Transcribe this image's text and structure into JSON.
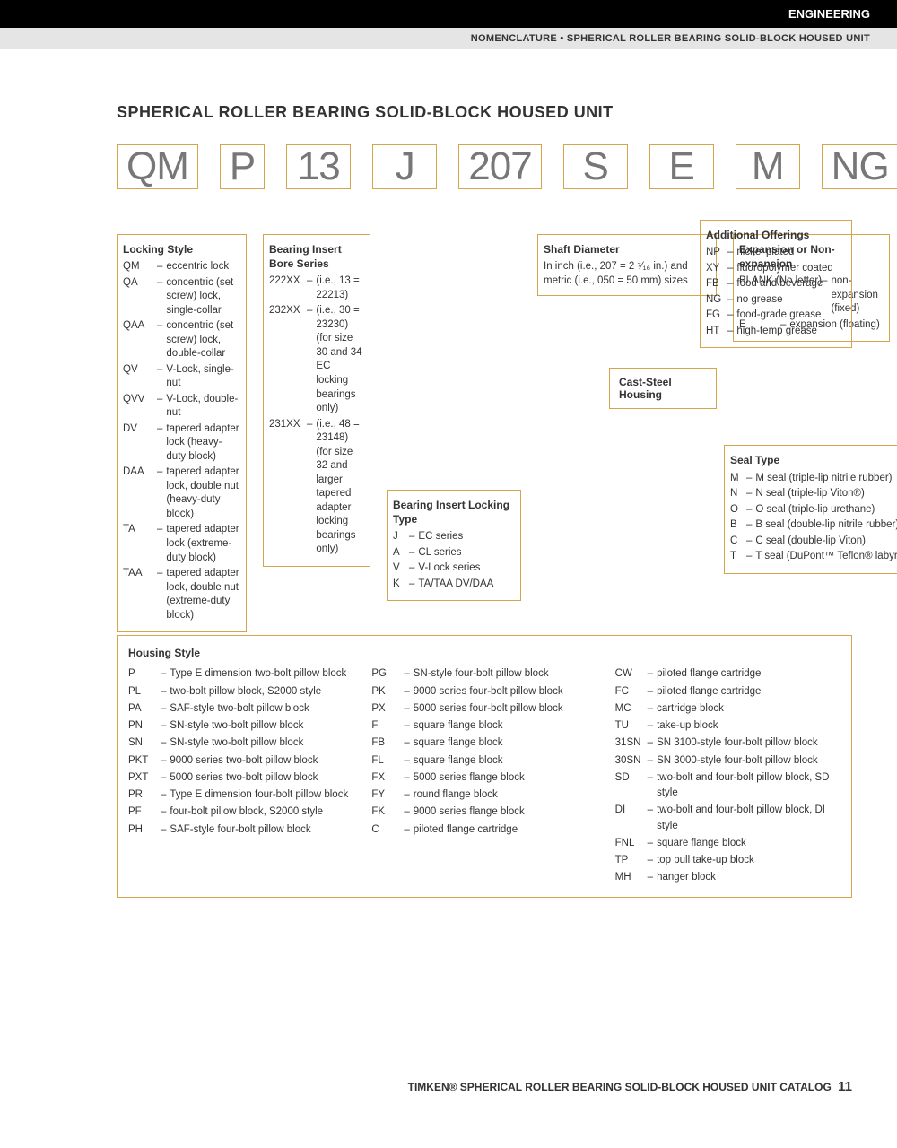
{
  "header": {
    "category": "ENGINEERING",
    "sub": "NOMENCLATURE • SPHERICAL ROLLER BEARING SOLID-BLOCK HOUSED UNIT"
  },
  "title": "SPHERICAL ROLLER BEARING SOLID-BLOCK HOUSED UNIT",
  "code": [
    "QM",
    "P",
    "13",
    "J",
    "207",
    "S",
    "E",
    "M",
    "NG"
  ],
  "colors": {
    "border": "#d4a54a",
    "code_text": "#777777"
  },
  "locking": {
    "title": "Locking Style",
    "items": [
      [
        "QM",
        "eccentric lock"
      ],
      [
        "QA",
        "concentric (set screw) lock, single-collar"
      ],
      [
        "QAA",
        "concentric (set screw) lock, double-collar"
      ],
      [
        "QV",
        "V-Lock, single-nut"
      ],
      [
        "QVV",
        "V-Lock, double-nut"
      ],
      [
        "DV",
        "tapered adapter lock (heavy-duty block)"
      ],
      [
        "DAA",
        "tapered adapter lock, double nut (heavy-duty block)"
      ],
      [
        "TA",
        "tapered adapter lock (extreme-duty block)"
      ],
      [
        "TAA",
        "tapered adapter lock, double nut (extreme-duty block)"
      ]
    ]
  },
  "bore": {
    "title": "Bearing Insert Bore Series",
    "items": [
      [
        "222XX",
        "(i.e., 13 = 22213)"
      ],
      [
        "232XX",
        "(i.e., 30 = 23230) (for size 30 and 34 EC locking bearings only)"
      ],
      [
        "231XX",
        "(i.e., 48 = 23148) (for size 32 and larger tapered adapter locking bearings only)"
      ]
    ]
  },
  "locktype": {
    "title": "Bearing Insert Locking Type",
    "items": [
      [
        "J",
        "EC series"
      ],
      [
        "A",
        "CL series"
      ],
      [
        "V",
        "V-Lock series"
      ],
      [
        "K",
        "TA/TAA DV/DAA"
      ]
    ]
  },
  "shaft": {
    "title": "Shaft Diameter",
    "text": "In inch (i.e., 207 = 2 ⁷⁄₁₆ in.) and metric (i.e., 050 = 50 mm) sizes"
  },
  "caststeel": "Cast-Steel Housing",
  "expansion": {
    "title": "Expansion or Non-expansion",
    "items": [
      [
        "BLANK (No letter)",
        "non-expansion (fixed)"
      ],
      [
        "E",
        "expansion (floating)"
      ]
    ]
  },
  "offerings": {
    "title": "Additional Offerings",
    "items": [
      [
        "NP",
        "nickel plated"
      ],
      [
        "XY",
        "fluoropolymer coated"
      ],
      [
        "FB",
        "food and beverage"
      ],
      [
        "NG",
        "no grease"
      ],
      [
        "FG",
        "food-grade grease"
      ],
      [
        "HT",
        "high-temp grease"
      ]
    ]
  },
  "seal": {
    "title": "Seal Type",
    "items": [
      [
        "M",
        "M seal (triple-lip nitrile rubber)"
      ],
      [
        "N",
        "N seal (triple-lip Viton®)"
      ],
      [
        "O",
        "O seal (triple-lip urethane)"
      ],
      [
        "B",
        "B seal (double-lip nitrile rubber)"
      ],
      [
        "C",
        "C seal (double-lip Viton)"
      ],
      [
        "T",
        "T seal (DuPont™ Teflon® labyrinth)"
      ]
    ]
  },
  "housing": {
    "title": "Housing Style",
    "cols": [
      [
        [
          "P",
          "Type E dimension two-bolt pillow block"
        ],
        [
          "PL",
          "two-bolt pillow block, S2000 style"
        ],
        [
          "PA",
          "SAF-style two-bolt pillow block"
        ],
        [
          "PN",
          "SN-style two-bolt pillow block"
        ],
        [
          "SN",
          "SN-style two-bolt pillow block"
        ],
        [
          "PKT",
          "9000 series two-bolt pillow block"
        ],
        [
          "PXT",
          "5000 series two-bolt pillow block"
        ],
        [
          "PR",
          "Type E dimension four-bolt pillow block"
        ],
        [
          "PF",
          "four-bolt pillow block, S2000 style"
        ],
        [
          "PH",
          "SAF-style four-bolt pillow block"
        ]
      ],
      [
        [
          "PG",
          "SN-style four-bolt pillow block"
        ],
        [
          "PK",
          "9000 series four-bolt pillow block"
        ],
        [
          "PX",
          "5000 series four-bolt pillow block"
        ],
        [
          "F",
          "square flange block"
        ],
        [
          "FB",
          "square flange block"
        ],
        [
          "FL",
          "square flange block"
        ],
        [
          "FX",
          "5000 series flange block"
        ],
        [
          "FY",
          "round flange block"
        ],
        [
          "FK",
          "9000 series flange block"
        ],
        [
          "C",
          "piloted flange cartridge"
        ]
      ],
      [
        [
          "CW",
          "piloted flange cartridge"
        ],
        [
          "FC",
          "piloted flange cartridge"
        ],
        [
          "MC",
          "cartridge block"
        ],
        [
          "TU",
          "take-up block"
        ],
        [
          "31SN",
          "SN 3100-style four-bolt pillow block"
        ],
        [
          "30SN",
          "SN 3000-style four-bolt pillow block"
        ],
        [
          "SD",
          "two-bolt and four-bolt pillow block, SD style"
        ],
        [
          "DI",
          "two-bolt and four-bolt pillow block, DI style"
        ],
        [
          "FNL",
          "square flange block"
        ],
        [
          "TP",
          "top pull take-up block"
        ],
        [
          "MH",
          "hanger block"
        ]
      ]
    ]
  },
  "footer": {
    "text": "TIMKEN® SPHERICAL ROLLER BEARING SOLID-BLOCK HOUSED UNIT CATALOG",
    "page": "11"
  }
}
